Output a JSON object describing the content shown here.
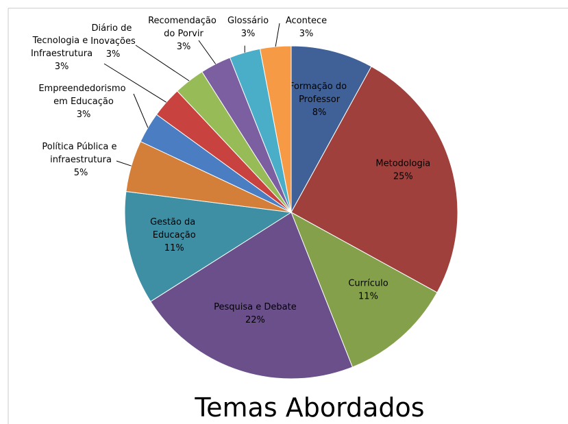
{
  "chart_data": {
    "type": "pie",
    "title": "Temas Abordados",
    "categories": [
      "Formação do Professor",
      "Metodologia",
      "Currículo",
      "Pesquisa e Debate",
      "Gestão da Educação",
      "Política Pública e infraestrutura",
      "Empreendedorismo em Educação",
      "Tecnologia e Infraestrutura",
      "Diário de Inovações",
      "Recomendação do Porvir",
      "Glossário",
      "Acontece"
    ],
    "values": [
      8,
      25,
      11,
      22,
      11,
      5,
      3,
      3,
      3,
      3,
      3,
      3
    ],
    "value_labels": [
      "8%",
      "25%",
      "11%",
      "22%",
      "11%",
      "5%",
      "3%",
      "3%",
      "3%",
      "3%",
      "3%",
      "3%"
    ],
    "colors": [
      "#3f6197",
      "#a0403c",
      "#84a04a",
      "#6a4f8a",
      "#3e8ea4",
      "#d37f3a",
      "#4a7dc1",
      "#c8433f",
      "#97bb56",
      "#7b5fa0",
      "#4aaec9",
      "#f79a45"
    ]
  }
}
